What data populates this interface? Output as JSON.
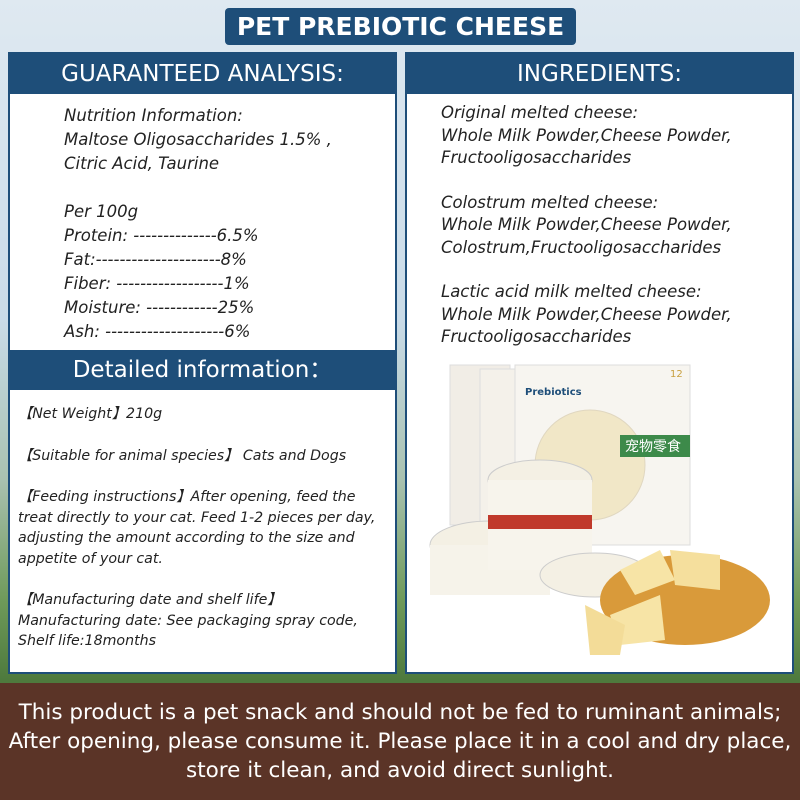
{
  "title": "PET PREBIOTIC CHEESE",
  "analysis": {
    "header": "GUARANTEED ANALYSIS:",
    "lines": [
      "Nutrition Information:",
      "Maltose Oligosaccharides 1.5% ,",
      "Citric Acid, Taurine",
      "",
      "Per 100g",
      "Protein: --------------6.5%",
      "Fat:---------------------8%",
      "Fiber: ------------------1%",
      "Moisture: ------------25%",
      "Ash: --------------------6%"
    ]
  },
  "detailed": {
    "header": "Detailed information：",
    "net_weight": "【Net Weight】210g",
    "species": "【Suitable for animal species】 Cats and Dogs",
    "feeding": "【Feeding instructions】After opening, feed the treat directly to your cat. Feed 1-2 pieces per day, adjusting the amount according to the size and appetite of your cat.",
    "shelf_title": "【Manufacturing date and shelf life】",
    "shelf_1": "Manufacturing date: See packaging spray code,",
    "shelf_2": "Shelf life:18months"
  },
  "ingredients": {
    "header": "INGREDIENTS:",
    "items": [
      {
        "name": "Original melted cheese:",
        "list": "Whole Milk Powder,Cheese  Powder, Fructooligosaccharides"
      },
      {
        "name": "Colostrum melted cheese:",
        "list": "Whole Milk Powder,Cheese  Powder, Colostrum,Fructooligosaccharides"
      },
      {
        "name": "Lactic acid milk melted cheese:",
        "list": "Whole Milk Powder,Cheese  Powder, Fructooligosaccharides"
      }
    ]
  },
  "product_image": {
    "box_label": "Prebiotics",
    "box_cn": "宠物零食",
    "count": "12"
  },
  "footer": "This product is a pet snack and should not be fed to ruminant animals; After opening, please consume it. Please place it in a cool and dry place, store it clean, and avoid direct sunlight.",
  "colors": {
    "navy": "#1e4e79",
    "brown": "#5b3427"
  }
}
